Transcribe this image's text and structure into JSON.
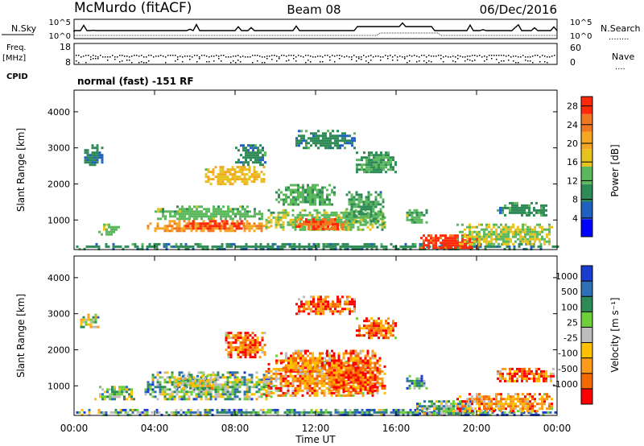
{
  "header": {
    "station": "McMurdo (fitACF)",
    "beam": "Beam 08",
    "date": "06/Dec/2016"
  },
  "params_panel": {
    "left_labels": {
      "nsky": "N.Sky",
      "freq_line1": "Freq.",
      "freq_line2": "[MHz]",
      "cpid": "CPID"
    },
    "right_labels": {
      "nsearch": "N.Search",
      "nave": "Nave",
      "dots": "........",
      "dots_short": "...."
    },
    "noise_ticks": {
      "top": "10^5",
      "bottom": "10^0"
    },
    "freq_ticks": {
      "top": "18",
      "bottom": "8"
    },
    "nave_ticks": {
      "top": "60",
      "bottom": "0"
    },
    "cpid_text": "normal (fast) -151 RF"
  },
  "colors": {
    "power_scale": [
      "#0000ff",
      "#2060c0",
      "#2e8b57",
      "#5cb85c",
      "#e6c31e",
      "#f5a623",
      "#f07820",
      "#ff2a0a"
    ],
    "velocity_scale": [
      "#1a3ccf",
      "#2f6fb6",
      "#2e8b57",
      "#6fcf3a",
      "#bdbdbd",
      "#ffc000",
      "#ff9a1a",
      "#f26a00",
      "#ff0000"
    ]
  },
  "chart_data": [
    {
      "type": "heatmap",
      "panel": "power",
      "xlabel": "Time UT",
      "ylabel": "Slant Range [km]",
      "x_ticks": [
        "00:00",
        "04:00",
        "08:00",
        "12:00",
        "16:00",
        "20:00",
        "00:00"
      ],
      "x_range_hours": [
        0,
        24
      ],
      "y_ticks": [
        "1000",
        "2000",
        "3000",
        "4000"
      ],
      "y_range_km": [
        180,
        4600
      ],
      "colorbar": {
        "label": "Power [dB]",
        "ticks": [
          "4",
          "8",
          "12",
          "16",
          "20",
          "24",
          "28"
        ],
        "range": [
          0,
          30
        ]
      },
      "blobs": [
        {
          "t0": 0.1,
          "t1": 24,
          "r0": 220,
          "r1": 360,
          "val": 9
        },
        {
          "t0": 1.2,
          "t1": 2.2,
          "r0": 600,
          "r1": 900,
          "val": 14
        },
        {
          "t0": 3.5,
          "t1": 9.8,
          "r0": 700,
          "r1": 1000,
          "val": 22
        },
        {
          "t0": 4.0,
          "t1": 9.5,
          "r0": 1000,
          "r1": 1400,
          "val": 13
        },
        {
          "t0": 5.5,
          "t1": 8.5,
          "r0": 750,
          "r1": 1000,
          "val": 27
        },
        {
          "t0": 6.5,
          "t1": 9.5,
          "r0": 2000,
          "r1": 2500,
          "val": 18
        },
        {
          "t0": 9.5,
          "t1": 15.5,
          "r0": 700,
          "r1": 1300,
          "val": 14
        },
        {
          "t0": 11.0,
          "t1": 13.5,
          "r0": 750,
          "r1": 1050,
          "val": 26
        },
        {
          "t0": 13.5,
          "t1": 15.3,
          "r0": 900,
          "r1": 1800,
          "val": 11
        },
        {
          "t0": 10.0,
          "t1": 13.0,
          "r0": 1400,
          "r1": 2000,
          "val": 12
        },
        {
          "t0": 8.0,
          "t1": 9.5,
          "r0": 2500,
          "r1": 3100,
          "val": 9
        },
        {
          "t0": 0.5,
          "t1": 1.4,
          "r0": 2500,
          "r1": 3100,
          "val": 8
        },
        {
          "t0": 17.2,
          "t1": 20.2,
          "r0": 200,
          "r1": 600,
          "val": 28
        },
        {
          "t0": 19.0,
          "t1": 23.8,
          "r0": 300,
          "r1": 900,
          "val": 15
        },
        {
          "t0": 21.0,
          "t1": 23.5,
          "r0": 1100,
          "r1": 1500,
          "val": 10
        },
        {
          "t0": 16.5,
          "t1": 17.5,
          "r0": 900,
          "r1": 1300,
          "val": 12
        },
        {
          "t0": 14.0,
          "t1": 16.0,
          "r0": 2300,
          "r1": 2900,
          "val": 11
        },
        {
          "t0": 11.0,
          "t1": 14.0,
          "r0": 3000,
          "r1": 3500,
          "val": 9
        }
      ]
    },
    {
      "type": "heatmap",
      "panel": "velocity",
      "xlabel": "Time UT",
      "ylabel": "Slant Range [km]",
      "x_ticks": [
        "00:00",
        "04:00",
        "08:00",
        "12:00",
        "16:00",
        "20:00",
        "00:00"
      ],
      "x_range_hours": [
        0,
        24
      ],
      "y_ticks": [
        "1000",
        "2000",
        "3000",
        "4000"
      ],
      "y_range_km": [
        180,
        4600
      ],
      "colorbar": {
        "label": "Velocity [m s⁻¹]",
        "ticks": [
          "1000",
          "500",
          "100",
          "25",
          "-25",
          "-100",
          "-500",
          "-1000"
        ]
      },
      "blobs": [
        {
          "t0": 0.1,
          "t1": 24,
          "r0": 220,
          "r1": 360,
          "val": 2
        },
        {
          "t0": 1.0,
          "t1": 3.0,
          "r0": 600,
          "r1": 1000,
          "val": 3
        },
        {
          "t0": 3.5,
          "t1": 9.8,
          "r0": 600,
          "r1": 1400,
          "val": 3
        },
        {
          "t0": 5.0,
          "t1": 7.0,
          "r0": 900,
          "r1": 1300,
          "val": 4
        },
        {
          "t0": 7.5,
          "t1": 9.5,
          "r0": 1800,
          "r1": 2500,
          "val": 7
        },
        {
          "t0": 9.5,
          "t1": 15.5,
          "r0": 700,
          "r1": 1700,
          "val": 6
        },
        {
          "t0": 12.5,
          "t1": 15.2,
          "r0": 800,
          "r1": 2000,
          "val": 7
        },
        {
          "t0": 10.0,
          "t1": 13.0,
          "r0": 1400,
          "r1": 2000,
          "val": 6
        },
        {
          "t0": 0.3,
          "t1": 1.2,
          "r0": 2600,
          "r1": 3000,
          "val": 4
        },
        {
          "t0": 14.0,
          "t1": 16.0,
          "r0": 2300,
          "r1": 2900,
          "val": 7
        },
        {
          "t0": 16.5,
          "t1": 17.5,
          "r0": 900,
          "r1": 1300,
          "val": 2
        },
        {
          "t0": 17.0,
          "t1": 20.0,
          "r0": 200,
          "r1": 600,
          "val": 3
        },
        {
          "t0": 19.0,
          "t1": 23.8,
          "r0": 300,
          "r1": 800,
          "val": 6
        },
        {
          "t0": 21.0,
          "t1": 23.8,
          "r0": 1100,
          "r1": 1500,
          "val": 7
        },
        {
          "t0": 11.0,
          "t1": 14.0,
          "r0": 3000,
          "r1": 3500,
          "val": 7
        }
      ]
    }
  ]
}
